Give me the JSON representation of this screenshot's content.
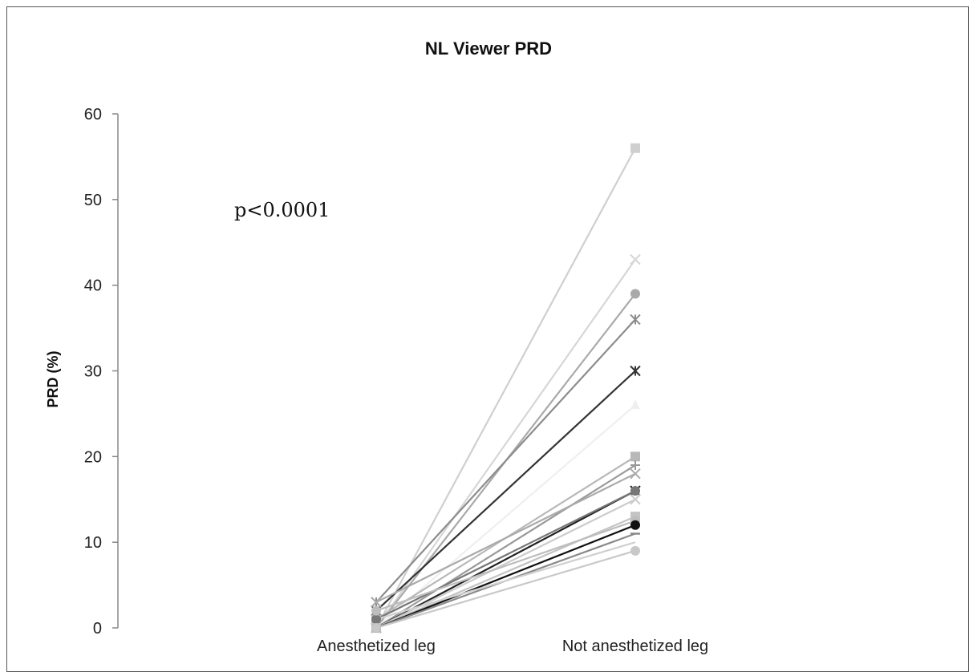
{
  "chart_data": {
    "type": "line",
    "title": "NL Viewer PRD",
    "ylabel": "PRD (%)",
    "xlabel": "",
    "categories": [
      "Anesthetized leg",
      "Not anesthetized leg"
    ],
    "ylim": [
      0,
      60
    ],
    "yticks": [
      0,
      10,
      20,
      30,
      40,
      50,
      60
    ],
    "annotation": "p<0.0001",
    "grid": false,
    "legend": "none",
    "series": [
      {
        "values": [
          0,
          56
        ],
        "marker": "square",
        "color": "#cfcfcf"
      },
      {
        "values": [
          0,
          43
        ],
        "marker": "x",
        "color": "#d6d6d6"
      },
      {
        "values": [
          0,
          39
        ],
        "marker": "circle",
        "color": "#a9a9a9"
      },
      {
        "values": [
          3,
          36
        ],
        "marker": "star",
        "color": "#8c8c8c"
      },
      {
        "values": [
          2,
          30
        ],
        "marker": "star",
        "color": "#333333"
      },
      {
        "values": [
          0,
          26
        ],
        "marker": "triangle",
        "color": "#efefef"
      },
      {
        "values": [
          1,
          20
        ],
        "marker": "square",
        "color": "#b8b8b8"
      },
      {
        "values": [
          0,
          19
        ],
        "marker": "plus",
        "color": "#999999"
      },
      {
        "values": [
          3,
          18
        ],
        "marker": "x",
        "color": "#aaaaaa"
      },
      {
        "values": [
          0,
          16
        ],
        "marker": "star",
        "color": "#222222"
      },
      {
        "values": [
          1,
          16
        ],
        "marker": "circle",
        "color": "#777777"
      },
      {
        "values": [
          0,
          15
        ],
        "marker": "x",
        "color": "#cccccc"
      },
      {
        "values": [
          0,
          13
        ],
        "marker": "square",
        "color": "#c4c4c4"
      },
      {
        "values": [
          2,
          12.5
        ],
        "marker": "circle",
        "color": "#bdbdbd"
      },
      {
        "values": [
          0,
          12
        ],
        "marker": "circle",
        "color": "#111111"
      },
      {
        "values": [
          0,
          11
        ],
        "marker": "dash",
        "color": "#8a8a8a"
      },
      {
        "values": [
          1,
          10
        ],
        "marker": "none",
        "color": "#d0d0d0"
      },
      {
        "values": [
          0,
          9
        ],
        "marker": "circle",
        "color": "#c8c8c8"
      }
    ]
  },
  "colors": {
    "axis": "#888888",
    "frame": "#555555"
  }
}
